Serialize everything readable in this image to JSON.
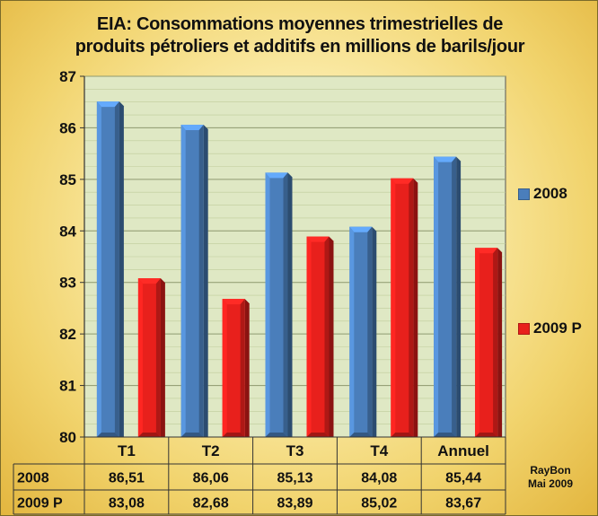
{
  "chart_data": {
    "type": "bar",
    "title": "EIA: Consommations moyennes trimestrielles de produits pétroliers et additifs en millions de barils/jour",
    "title_lines": [
      "EIA: Consommations moyennes trimestrielles de",
      "produits pétroliers et additifs en millions de barils/jour"
    ],
    "categories": [
      "T1",
      "T2",
      "T3",
      "T4",
      "Annuel"
    ],
    "series": [
      {
        "name": "2008",
        "color": "#4a7ebb",
        "values": [
          86.51,
          86.06,
          85.13,
          84.08,
          85.44
        ],
        "labels": [
          "86,51",
          "86,06",
          "85,13",
          "84,08",
          "85,44"
        ]
      },
      {
        "name": "2009 P",
        "color": "#e8201c",
        "values": [
          83.08,
          82.68,
          83.89,
          85.02,
          83.67
        ],
        "labels": [
          "83,08",
          "82,68",
          "83,89",
          "85,02",
          "83,67"
        ]
      }
    ],
    "ylim": [
      80,
      87
    ],
    "yticks": [
      80,
      81,
      82,
      83,
      84,
      85,
      86,
      87
    ],
    "grid": true,
    "legend_placement": "right",
    "plot_background": "#dfe8c4",
    "data_table": true
  },
  "credit": {
    "line1": "RayBon",
    "line2": "Mai 2009"
  }
}
